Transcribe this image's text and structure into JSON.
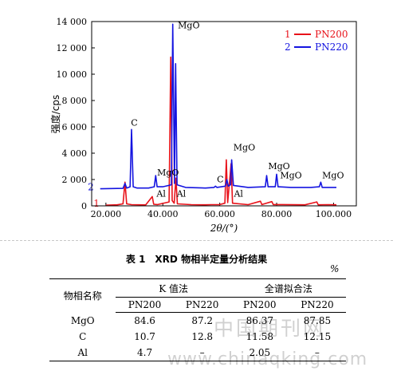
{
  "chart_data": {
    "type": "line",
    "xlabel": "2θ/(°)",
    "ylabel": "强度/cps",
    "xlim": [
      15,
      108
    ],
    "ylim": [
      0,
      14000
    ],
    "x_ticks": [
      20,
      40,
      60,
      80,
      100
    ],
    "x_tick_labels": [
      "20.000",
      "40.000",
      "60.000",
      "80.000",
      "100.000"
    ],
    "y_ticks": [
      0,
      2000,
      4000,
      6000,
      8000,
      10000,
      12000,
      14000
    ],
    "y_tick_labels": [
      "0",
      "2 000",
      "4 000",
      "6 000",
      "8 000",
      "10 000",
      "12 000",
      "14 000"
    ],
    "legend_position": "top-right",
    "series": [
      {
        "name": "PN200",
        "marker": "1",
        "color": "#e8121a",
        "points": [
          [
            20,
            50
          ],
          [
            24,
            80
          ],
          [
            26,
            150
          ],
          [
            26.7,
            1800
          ],
          [
            27.3,
            150
          ],
          [
            29,
            90
          ],
          [
            34,
            70
          ],
          [
            36.3,
            700
          ],
          [
            36.8,
            120
          ],
          [
            38.2,
            100
          ],
          [
            42.2,
            300
          ],
          [
            42.8,
            11300
          ],
          [
            43.3,
            400
          ],
          [
            44,
            200
          ],
          [
            44.6,
            2100
          ],
          [
            45.1,
            150
          ],
          [
            50,
            90
          ],
          [
            55,
            80
          ],
          [
            57,
            90
          ],
          [
            60,
            100
          ],
          [
            61.8,
            200
          ],
          [
            62.3,
            3500
          ],
          [
            62.8,
            250
          ],
          [
            64,
            3200
          ],
          [
            64.5,
            200
          ],
          [
            70,
            90
          ],
          [
            74.3,
            350
          ],
          [
            74.8,
            100
          ],
          [
            78.3,
            320
          ],
          [
            78.8,
            100
          ],
          [
            82,
            100
          ],
          [
            90,
            80
          ],
          [
            94.1,
            300
          ],
          [
            94.6,
            80
          ],
          [
            98,
            90
          ],
          [
            101,
            80
          ]
        ]
      },
      {
        "name": "PN220",
        "marker": "2",
        "color": "#1414e0",
        "points": [
          [
            18,
            1300
          ],
          [
            24,
            1320
          ],
          [
            26,
            1330
          ],
          [
            26.7,
            1700
          ],
          [
            27.3,
            1350
          ],
          [
            28.5,
            1450
          ],
          [
            29,
            5800
          ],
          [
            29.6,
            1450
          ],
          [
            31,
            1350
          ],
          [
            35,
            1350
          ],
          [
            37,
            1450
          ],
          [
            37.5,
            2300
          ],
          [
            38,
            1450
          ],
          [
            40,
            1450
          ],
          [
            43,
            1600
          ],
          [
            43.5,
            13800
          ],
          [
            44.1,
            1700
          ],
          [
            44.5,
            10800
          ],
          [
            45,
            1600
          ],
          [
            48,
            1400
          ],
          [
            55,
            1350
          ],
          [
            58,
            1400
          ],
          [
            58.5,
            1500
          ],
          [
            59,
            1400
          ],
          [
            62,
            1500
          ],
          [
            62.5,
            2000
          ],
          [
            63,
            1500
          ],
          [
            63.8,
            1600
          ],
          [
            64.2,
            3500
          ],
          [
            64.8,
            1550
          ],
          [
            70,
            1400
          ],
          [
            76,
            1450
          ],
          [
            76.5,
            2300
          ],
          [
            77,
            1450
          ],
          [
            79.5,
            1450
          ],
          [
            80,
            2400
          ],
          [
            80.5,
            1450
          ],
          [
            85,
            1400
          ],
          [
            92,
            1400
          ],
          [
            95,
            1450
          ],
          [
            95.5,
            1800
          ],
          [
            96,
            1400
          ],
          [
            101,
            1400
          ]
        ]
      }
    ],
    "annotations": [
      {
        "text": "MgO",
        "x": 45.3,
        "y": 13500
      },
      {
        "text": "C",
        "x": 28.8,
        "y": 6100
      },
      {
        "text": "MgO",
        "x": 38.0,
        "y": 2300
      },
      {
        "text": "Al",
        "x": 37.8,
        "y": 700
      },
      {
        "text": "Al",
        "x": 44.9,
        "y": 700
      },
      {
        "text": "C",
        "x": 59.0,
        "y": 1800
      },
      {
        "text": "MgO",
        "x": 64.8,
        "y": 4200
      },
      {
        "text": "Al",
        "x": 65.0,
        "y": 700
      },
      {
        "text": "MgO",
        "x": 77.0,
        "y": 2800
      },
      {
        "text": "MgO",
        "x": 81.2,
        "y": 2100
      },
      {
        "text": "MgO",
        "x": 96.0,
        "y": 2100
      }
    ]
  },
  "table": {
    "caption": "表 1　XRD 物相半定量分析结果",
    "unit": "%",
    "header": {
      "phase": "物相名称",
      "group_k": "K 值法",
      "group_full": "全谱拟合法",
      "cols": [
        "PN200",
        "PN220",
        "PN200",
        "PN220"
      ]
    },
    "rows": [
      {
        "phase": "MgO",
        "values": [
          "84.6",
          "87.2",
          "86.37",
          "87.85"
        ]
      },
      {
        "phase": "C",
        "values": [
          "10.7",
          "12.8",
          "11.58",
          "12.15"
        ]
      },
      {
        "phase": "Al",
        "values": [
          "4.7",
          "–",
          "2.05",
          "–"
        ]
      }
    ]
  },
  "watermark": {
    "line1": "中国期刊网",
    "line2": "www.chinaqking.com"
  }
}
